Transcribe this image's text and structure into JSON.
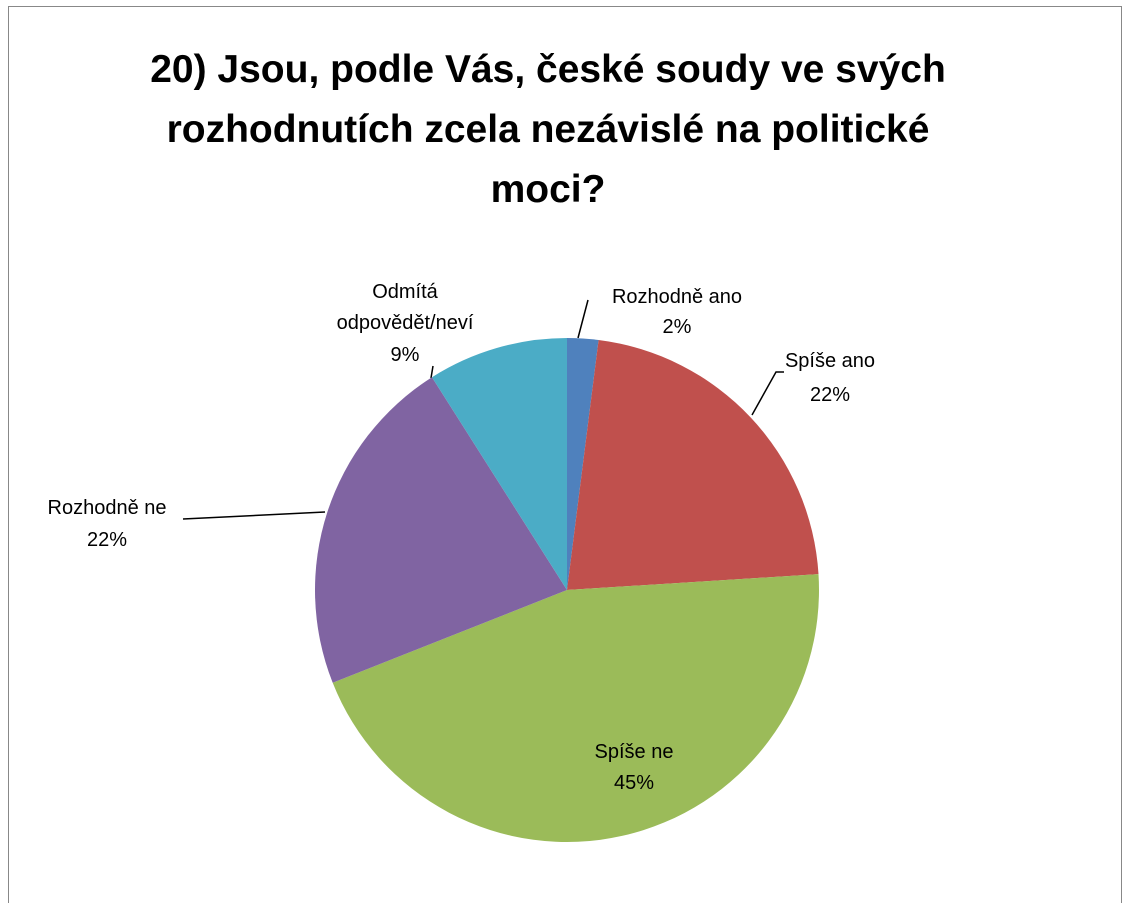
{
  "chart_data": {
    "type": "pie",
    "title": "20) Jsou, podle Vás, české soudy ve svých rozhodnutích zcela nezávislé na politické moci?",
    "categories": [
      "Rozhodně ano",
      "Spíše ano",
      "Spíše ne",
      "Rozhodně ne",
      "Odmítá odpovědět/neví"
    ],
    "values": [
      2,
      22,
      45,
      22,
      9
    ],
    "value_labels": [
      "2%",
      "22%",
      "45%",
      "22%",
      "9%"
    ],
    "colors": [
      "#4f81bd",
      "#c0504d",
      "#9bbb59",
      "#8064a2",
      "#4bacc6"
    ]
  }
}
